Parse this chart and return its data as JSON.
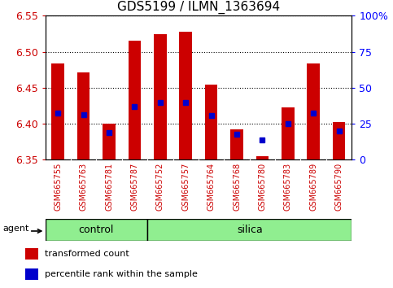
{
  "title": "GDS5199 / ILMN_1363694",
  "samples": [
    "GSM665755",
    "GSM665763",
    "GSM665781",
    "GSM665787",
    "GSM665752",
    "GSM665757",
    "GSM665764",
    "GSM665768",
    "GSM665780",
    "GSM665783",
    "GSM665789",
    "GSM665790"
  ],
  "bar_bottoms": [
    6.35,
    6.35,
    6.35,
    6.35,
    6.35,
    6.35,
    6.35,
    6.35,
    6.35,
    6.35,
    6.35,
    6.35
  ],
  "bar_tops": [
    6.484,
    6.471,
    6.4,
    6.516,
    6.524,
    6.528,
    6.454,
    6.392,
    6.355,
    6.423,
    6.484,
    6.402
  ],
  "percentile_values": [
    6.415,
    6.413,
    6.388,
    6.424,
    6.43,
    6.43,
    6.412,
    6.385,
    6.378,
    6.4,
    6.415,
    6.39
  ],
  "ylim_min": 6.35,
  "ylim_max": 6.55,
  "yticks": [
    6.35,
    6.4,
    6.45,
    6.5,
    6.55
  ],
  "ytick_labels": [
    "6.35",
    "6.40",
    "6.45",
    "6.50",
    "6.55"
  ],
  "right_yticks": [
    0,
    25,
    50,
    75,
    100
  ],
  "right_ytick_labels": [
    "0",
    "25",
    "50",
    "75",
    "100%"
  ],
  "bar_color": "#cc0000",
  "percentile_color": "#0000cc",
  "group_color": "#90ee90",
  "agent_label": "agent",
  "group_labels": [
    "control",
    "silica"
  ],
  "control_count": 4,
  "silica_count": 8,
  "tick_color": "#cc0000",
  "right_tick_color": "#0000ff",
  "bar_width": 0.5,
  "legend_items": [
    "transformed count",
    "percentile rank within the sample"
  ]
}
